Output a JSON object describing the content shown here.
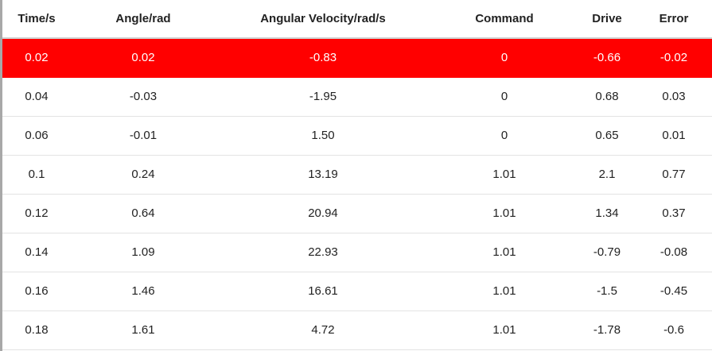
{
  "table": {
    "headers": [
      "Time/s",
      "Angle/rad",
      "Angular Velocity/rad/s",
      "Command",
      "Drive",
      "Error"
    ],
    "selected_row": 0,
    "selected_color": "#ff0000",
    "rows": [
      [
        "0.02",
        "0.02",
        "-0.83",
        "0",
        "-0.66",
        "-0.02"
      ],
      [
        "0.04",
        "-0.03",
        "-1.95",
        "0",
        "0.68",
        "0.03"
      ],
      [
        "0.06",
        "-0.01",
        "1.50",
        "0",
        "0.65",
        "0.01"
      ],
      [
        "0.1",
        "0.24",
        "13.19",
        "1.01",
        "2.1",
        "0.77"
      ],
      [
        "0.12",
        "0.64",
        "20.94",
        "1.01",
        "1.34",
        "0.37"
      ],
      [
        "0.14",
        "1.09",
        "22.93",
        "1.01",
        "-0.79",
        "-0.08"
      ],
      [
        "0.16",
        "1.46",
        "16.61",
        "1.01",
        "-1.5",
        "-0.45"
      ],
      [
        "0.18",
        "1.61",
        "4.72",
        "1.01",
        "-1.78",
        "-0.6"
      ]
    ]
  }
}
